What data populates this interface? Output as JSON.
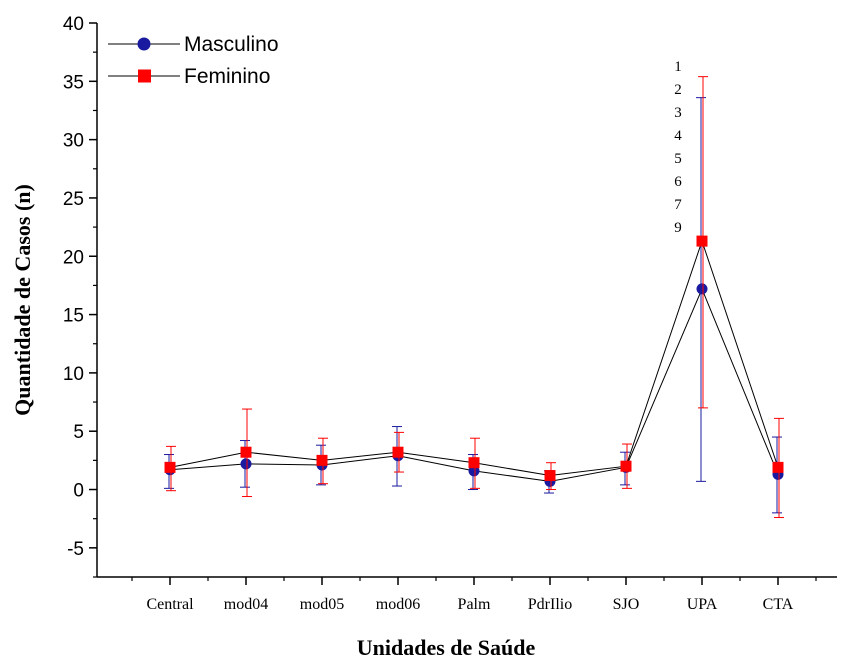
{
  "chart_data": {
    "type": "line",
    "xlabel": "Unidades de Saúde",
    "ylabel": "Quantidade de Casos (n)",
    "ylim": [
      -7.5,
      40
    ],
    "yticks": [
      -5,
      0,
      5,
      10,
      15,
      20,
      25,
      30,
      35,
      40
    ],
    "categories": [
      "Central",
      "mod04",
      "mod05",
      "mod06",
      "Palm",
      "PdrIlio",
      "SJO",
      "UPA",
      "CTA"
    ],
    "legend_position": "top-left",
    "series": [
      {
        "name": "Masculino",
        "color": "#1a1aa0",
        "marker": "circle",
        "values": [
          1.7,
          2.2,
          2.1,
          2.9,
          1.6,
          0.7,
          1.9,
          17.2,
          1.3
        ],
        "err_low": [
          0.1,
          0.2,
          0.4,
          0.3,
          0.0,
          -0.3,
          0.4,
          0.7,
          -2.0
        ],
        "err_high": [
          3.0,
          4.2,
          3.8,
          5.4,
          3.0,
          1.6,
          3.2,
          33.6,
          4.5
        ]
      },
      {
        "name": "Feminino",
        "color": "#ff0000",
        "marker": "square",
        "values": [
          1.9,
          3.2,
          2.5,
          3.2,
          2.3,
          1.2,
          2.0,
          21.3,
          1.9
        ],
        "err_low": [
          -0.1,
          -0.6,
          0.5,
          1.5,
          0.1,
          0.0,
          0.1,
          7.0,
          -2.4
        ],
        "err_high": [
          3.7,
          6.9,
          4.4,
          4.9,
          4.4,
          2.3,
          3.9,
          35.4,
          6.1
        ]
      }
    ],
    "annotations": [
      "1",
      "2",
      "3",
      "4",
      "5",
      "6",
      "7",
      "9"
    ]
  }
}
